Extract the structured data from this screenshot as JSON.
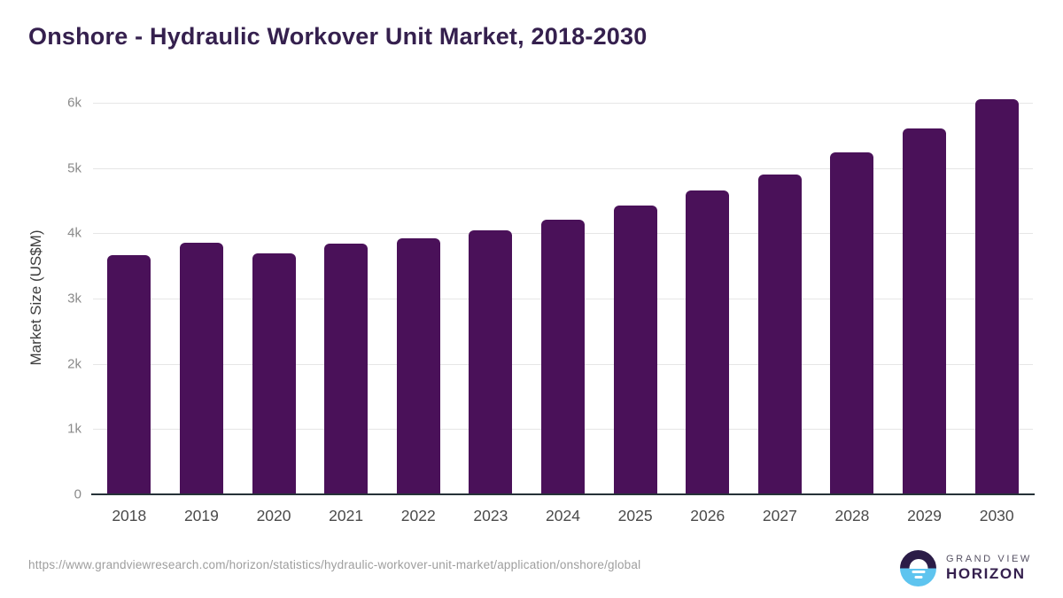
{
  "header": {
    "title": "Onshore - Hydraulic Workover Unit Market, 2018-2030"
  },
  "footer": {
    "source_url": "https://www.grandviewresearch.com/horizon/statistics/hydraulic-workover-unit-market/application/onshore/global",
    "logo": {
      "icon": "sun-over-horizon-icon",
      "line1": "GRAND VIEW",
      "line2": "HORIZON"
    }
  },
  "colors": {
    "bar": "#4A1159",
    "title": "#35204E",
    "gridline": "#e6e6e6",
    "axis_line": "#263238",
    "logo_dark": "#2B1C47",
    "logo_blue": "#5EC4EF"
  },
  "chart_data": {
    "type": "bar",
    "title": "Onshore - Hydraulic Workover Unit Market, 2018-2030",
    "categories": [
      "2018",
      "2019",
      "2020",
      "2021",
      "2022",
      "2023",
      "2024",
      "2025",
      "2026",
      "2027",
      "2028",
      "2029",
      "2030"
    ],
    "values": [
      3660,
      3850,
      3690,
      3840,
      3920,
      4050,
      4210,
      4420,
      4650,
      4900,
      5240,
      5610,
      6060
    ],
    "xlabel": "",
    "ylabel": "Market Size (US$M)",
    "ylim": [
      0,
      6000
    ],
    "ytick_labels": [
      "0",
      "1k",
      "2k",
      "3k",
      "4k",
      "5k",
      "6k"
    ],
    "ytick_values": [
      0,
      1000,
      2000,
      3000,
      4000,
      5000,
      6000
    ],
    "grid": "horizontal",
    "legend": false,
    "bar_color": "#4A1159"
  }
}
